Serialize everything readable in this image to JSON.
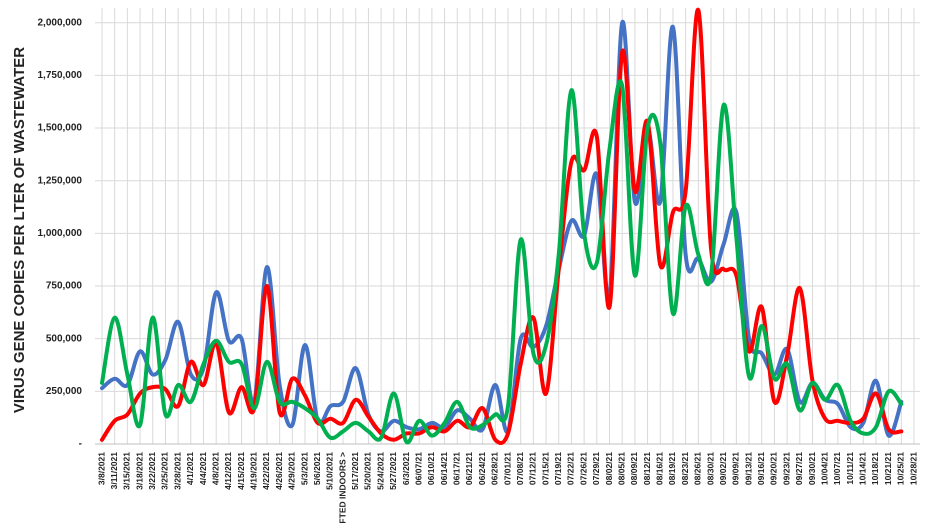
{
  "chart_data": {
    "type": "line",
    "y_label": "VIRUS GENE COPIES PER LTER OF WASTEWATER",
    "categories": [
      "3/8/2021",
      "3/11/2021",
      "3/15/2021",
      "3/18/2021",
      "3/22/2021",
      "3/25/2021",
      "3/28/2021",
      "4/1/2021",
      "4/4/2021",
      "4/8/2021",
      "4/12/2021",
      "4/15/2021",
      "4/19/2021",
      "4/22/2021",
      "4/26/2021",
      "4/29/2021",
      "5/3/2021",
      "5/6/2021",
      "5/10/2021",
      "FTED INDOORS >",
      "5/17/2021",
      "5/20/2021",
      "5/24/2021",
      "5/27/2021",
      "6/3/2021",
      "06/07/21",
      "06/10/21",
      "06/14/21",
      "06/17/21",
      "06/21/21",
      "06/24/21",
      "06/28/21",
      "07/01/21",
      "07/08/21",
      "07/12/21",
      "07/15/21",
      "07/19/21",
      "07/22/21",
      "07/26/21",
      "07/29/21",
      "08/02/21",
      "08/05/21",
      "08/09/21",
      "08/12/21",
      "08/16/21",
      "08/19/21",
      "08/23/21",
      "08/26/21",
      "08/30/21",
      "09/02/21",
      "09/09/21",
      "09/13/21",
      "09/16/21",
      "09/20/21",
      "09/23/21",
      "09/27/21",
      "09/30/21",
      "10/04/21",
      "10/07/21",
      "10/11/21",
      "10/14/21",
      "10/18/21",
      "10/21/21",
      "10/25/21",
      "10/28/21"
    ],
    "series": [
      {
        "color": "#4472c4",
        "values": [
          265000,
          310000,
          280000,
          440000,
          330000,
          400000,
          580000,
          330000,
          360000,
          720000,
          490000,
          500000,
          200000,
          840000,
          280000,
          90000,
          470000,
          110000,
          180000,
          200000,
          360000,
          140000,
          60000,
          110000,
          80000,
          70000,
          100000,
          80000,
          160000,
          120000,
          70000,
          280000,
          60000,
          500000,
          460000,
          560000,
          830000,
          1060000,
          990000,
          1280000,
          700000,
          2000000,
          1150000,
          1500000,
          1150000,
          1980000,
          900000,
          880000,
          770000,
          950000,
          1100000,
          500000,
          430000,
          330000,
          450000,
          200000,
          290000,
          210000,
          190000,
          80000,
          100000,
          300000,
          40000,
          200000,
          null
        ]
      },
      {
        "color": "#ff0000",
        "values": [
          20000,
          110000,
          140000,
          240000,
          270000,
          260000,
          180000,
          390000,
          280000,
          480000,
          150000,
          270000,
          170000,
          750000,
          150000,
          310000,
          230000,
          100000,
          120000,
          100000,
          210000,
          130000,
          50000,
          20000,
          50000,
          50000,
          80000,
          60000,
          110000,
          80000,
          170000,
          20000,
          50000,
          380000,
          600000,
          240000,
          830000,
          1340000,
          1300000,
          1460000,
          650000,
          1860000,
          1200000,
          1530000,
          850000,
          1100000,
          1200000,
          2060000,
          930000,
          830000,
          800000,
          440000,
          650000,
          200000,
          420000,
          740000,
          300000,
          120000,
          110000,
          100000,
          120000,
          240000,
          70000,
          60000,
          null
        ]
      },
      {
        "color": "#00b050",
        "values": [
          290000,
          600000,
          330000,
          90000,
          600000,
          140000,
          280000,
          200000,
          380000,
          490000,
          390000,
          380000,
          170000,
          390000,
          200000,
          200000,
          170000,
          120000,
          30000,
          60000,
          100000,
          60000,
          30000,
          240000,
          10000,
          110000,
          40000,
          100000,
          200000,
          80000,
          90000,
          140000,
          180000,
          970000,
          430000,
          470000,
          900000,
          1680000,
          1000000,
          860000,
          1400000,
          1700000,
          800000,
          1500000,
          1430000,
          620000,
          1130000,
          900000,
          800000,
          1610000,
          980000,
          320000,
          560000,
          310000,
          380000,
          160000,
          290000,
          210000,
          280000,
          110000,
          50000,
          80000,
          250000,
          190000,
          null
        ]
      }
    ],
    "ylim": [
      0,
      2070000
    ],
    "yticks": [
      {
        "value": 0,
        "label": "-"
      },
      {
        "value": 250000,
        "label": "250,000"
      },
      {
        "value": 500000,
        "label": "500,000"
      },
      {
        "value": 750000,
        "label": "750,000"
      },
      {
        "value": 1000000,
        "label": "1,000,000"
      },
      {
        "value": 1250000,
        "label": "1,250,000"
      },
      {
        "value": 1500000,
        "label": "1,500,000"
      },
      {
        "value": 1750000,
        "label": "1,750,000"
      },
      {
        "value": 2000000,
        "label": "2,000,000"
      }
    ],
    "grid": true
  }
}
